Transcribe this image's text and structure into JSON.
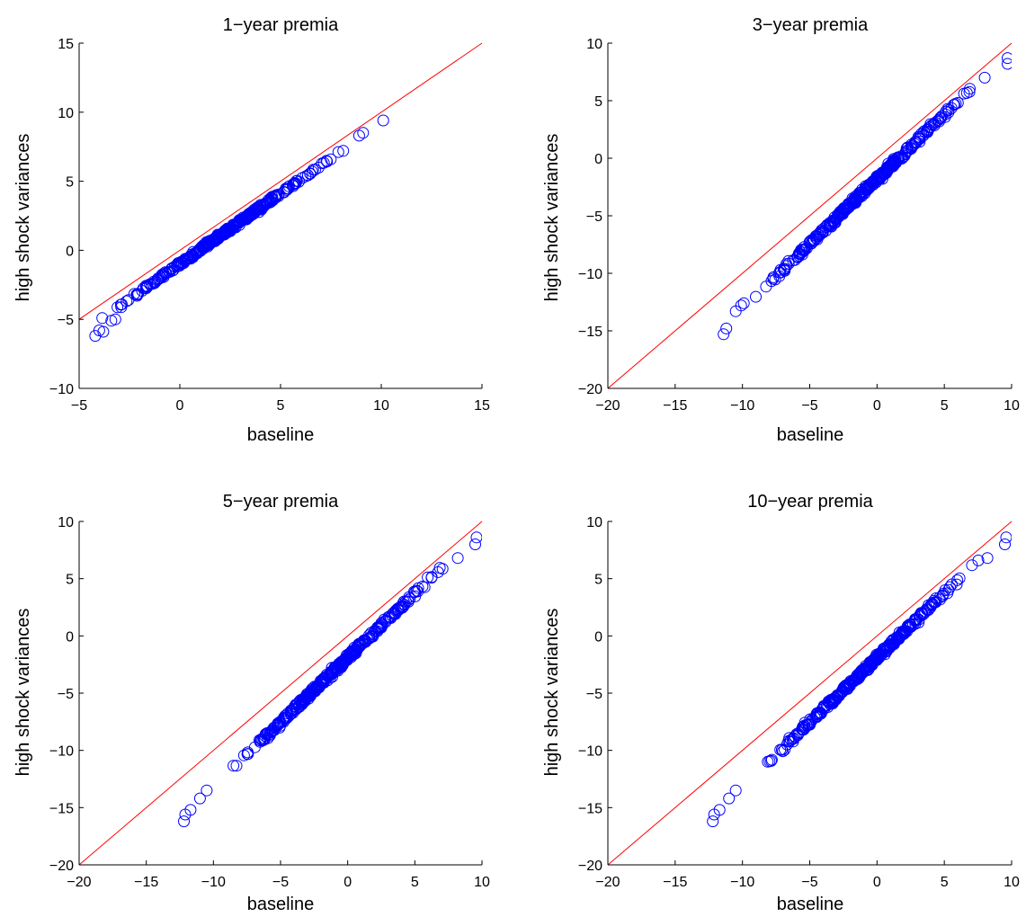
{
  "chart_data": [
    {
      "type": "scatter",
      "title": "1−year premia",
      "xlabel": "baseline",
      "ylabel": "high shock variances",
      "xlim": [
        -5,
        15
      ],
      "ylim": [
        -10,
        15
      ],
      "xticks": [
        "−5",
        "0",
        "5",
        "10",
        "15"
      ],
      "yticks": [
        "−10",
        "−5",
        "0",
        "5",
        "10",
        "15"
      ],
      "reference_line": {
        "from": [
          -5,
          -5
        ],
        "to": [
          15,
          15
        ],
        "color": "#ff0000"
      },
      "marker": {
        "shape": "circle-open",
        "color": "#0000ff"
      },
      "trend": {
        "x_range": [
          -4.2,
          9.2
        ],
        "slope": 1.02,
        "intercept": -1.0,
        "spread": 0.18
      },
      "extremes": [
        {
          "x": -4.2,
          "y": -6.2
        },
        {
          "x": -4.0,
          "y": -5.8
        },
        {
          "x": -3.8,
          "y": -5.9
        },
        {
          "x": -3.4,
          "y": -5.1
        },
        {
          "x": -3.2,
          "y": -5.0
        },
        {
          "x": 8.9,
          "y": 8.3
        },
        {
          "x": 9.1,
          "y": 8.5
        },
        {
          "x": 10.1,
          "y": 9.4
        }
      ]
    },
    {
      "type": "scatter",
      "title": "3−year premia",
      "xlabel": "baseline",
      "ylabel": "high shock variances",
      "xlim": [
        -20,
        10
      ],
      "ylim": [
        -20,
        10
      ],
      "xticks": [
        "−20",
        "−15",
        "−10",
        "−5",
        "0",
        "5",
        "10"
      ],
      "yticks": [
        "−20",
        "−15",
        "−10",
        "−5",
        "0",
        "5",
        "10"
      ],
      "reference_line": {
        "from": [
          -20,
          -20
        ],
        "to": [
          10,
          10
        ],
        "color": "#ff0000"
      },
      "marker": {
        "shape": "circle-open",
        "color": "#0000ff"
      },
      "trend": {
        "x_range": [
          -10.5,
          8.5
        ],
        "slope": 1.13,
        "intercept": -1.8,
        "spread": 0.3
      },
      "extremes": [
        {
          "x": -11.4,
          "y": -15.3
        },
        {
          "x": -11.2,
          "y": -14.8
        },
        {
          "x": -10.5,
          "y": -13.3
        },
        {
          "x": -10.1,
          "y": -12.8
        },
        {
          "x": -9.9,
          "y": -12.6
        },
        {
          "x": 8.0,
          "y": 7.0
        },
        {
          "x": 9.7,
          "y": 8.2
        },
        {
          "x": 9.7,
          "y": 8.7
        }
      ]
    },
    {
      "type": "scatter",
      "title": "5−year premia",
      "xlabel": "baseline",
      "ylabel": "high shock variances",
      "xlim": [
        -20,
        10
      ],
      "ylim": [
        -20,
        10
      ],
      "xticks": [
        "−20",
        "−15",
        "−10",
        "−5",
        "0",
        "5",
        "10"
      ],
      "yticks": [
        "−20",
        "−15",
        "−10",
        "−5",
        "0",
        "5",
        "10"
      ],
      "reference_line": {
        "from": [
          -20,
          -20
        ],
        "to": [
          10,
          10
        ],
        "color": "#ff0000"
      },
      "marker": {
        "shape": "circle-open",
        "color": "#0000ff"
      },
      "trend": {
        "x_range": [
          -10.2,
          8.5
        ],
        "slope": 1.13,
        "intercept": -1.9,
        "spread": 0.3
      },
      "extremes": [
        {
          "x": -12.2,
          "y": -16.2
        },
        {
          "x": -12.1,
          "y": -15.6
        },
        {
          "x": -11.7,
          "y": -15.2
        },
        {
          "x": -11.0,
          "y": -14.2
        },
        {
          "x": -10.5,
          "y": -13.5
        },
        {
          "x": 8.2,
          "y": 6.8
        },
        {
          "x": 9.5,
          "y": 8.0
        },
        {
          "x": 9.6,
          "y": 8.6
        }
      ]
    },
    {
      "type": "scatter",
      "title": "10−year premia",
      "xlabel": "baseline",
      "ylabel": "high shock variances",
      "xlim": [
        -20,
        10
      ],
      "ylim": [
        -20,
        10
      ],
      "xticks": [
        "−20",
        "−15",
        "−10",
        "−5",
        "0",
        "5",
        "10"
      ],
      "yticks": [
        "−20",
        "−15",
        "−10",
        "−5",
        "0",
        "5",
        "10"
      ],
      "reference_line": {
        "from": [
          -20,
          -20
        ],
        "to": [
          10,
          10
        ],
        "color": "#ff0000"
      },
      "marker": {
        "shape": "circle-open",
        "color": "#0000ff"
      },
      "trend": {
        "x_range": [
          -10.2,
          8.5
        ],
        "slope": 1.13,
        "intercept": -1.9,
        "spread": 0.3
      },
      "extremes": [
        {
          "x": -12.2,
          "y": -16.2
        },
        {
          "x": -12.1,
          "y": -15.6
        },
        {
          "x": -11.7,
          "y": -15.2
        },
        {
          "x": -11.0,
          "y": -14.2
        },
        {
          "x": -10.5,
          "y": -13.5
        },
        {
          "x": 8.2,
          "y": 6.8
        },
        {
          "x": 9.5,
          "y": 8.0
        },
        {
          "x": 9.6,
          "y": 8.6
        }
      ]
    }
  ]
}
